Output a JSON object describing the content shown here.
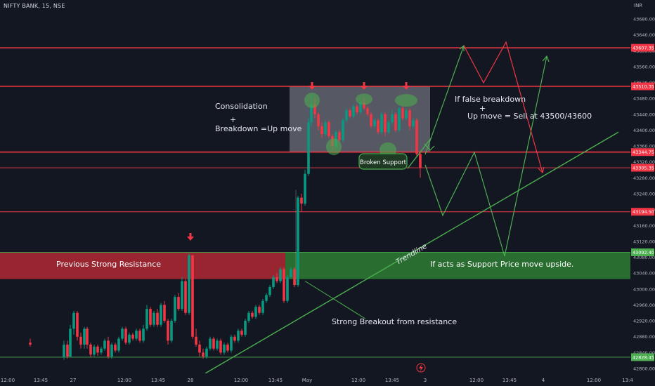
{
  "header": {
    "symbol": "NIFTY BANK, 15, NSE",
    "currency": "INR"
  },
  "chart_data": {
    "type": "candlestick",
    "ylim": [
      42790,
      43700
    ],
    "y_ticks": [
      43680,
      43640,
      43600,
      43560,
      43520,
      43480,
      43440,
      43400,
      43360,
      43320,
      43280,
      43240,
      43200,
      43160,
      43120,
      43080,
      43040,
      43000,
      42960,
      42920,
      42880,
      42840,
      42800
    ],
    "x_ticks": [
      {
        "label": "12:00",
        "x": 11
      },
      {
        "label": "13:45",
        "x": 58
      },
      {
        "label": "27",
        "x": 104
      },
      {
        "label": "12:00",
        "x": 177
      },
      {
        "label": "13:45",
        "x": 225
      },
      {
        "label": "28",
        "x": 271
      },
      {
        "label": "12:00",
        "x": 343
      },
      {
        "label": "13:45",
        "x": 392
      },
      {
        "label": "May",
        "x": 437
      },
      {
        "label": "12:00",
        "x": 510
      },
      {
        "label": "13:45",
        "x": 558
      },
      {
        "label": "3",
        "x": 605
      },
      {
        "label": "12:00",
        "x": 678
      },
      {
        "label": "13:45",
        "x": 725
      },
      {
        "label": "4",
        "x": 773
      },
      {
        "label": "12:00",
        "x": 845
      },
      {
        "label": "13:4",
        "x": 893
      }
    ],
    "levels": [
      {
        "value": 43607.35,
        "label": "43607.35",
        "color": "#f23645",
        "weight": "thick"
      },
      {
        "value": 43510.35,
        "label": "43510.35",
        "color": "#f23645",
        "weight": "thick"
      },
      {
        "value": 43344.75,
        "label": "43344.75",
        "color": "#f23645",
        "weight": "thick"
      },
      {
        "value": 43305.35,
        "label": "43305.35",
        "color": "#f23645",
        "weight": "thin"
      },
      {
        "value": 43194.5,
        "label": "43194.50",
        "color": "#f23645",
        "weight": "thin"
      },
      {
        "value": 43092.4,
        "label": "43092.40",
        "color": "#4caf50",
        "weight": "thin"
      },
      {
        "value": 42828.45,
        "label": "42828.45",
        "color": "#4caf50",
        "weight": "thin"
      }
    ],
    "zones": [
      {
        "name": "resistance-zone",
        "label": "Previous Strong Resistance",
        "x1": 0,
        "x2": 406,
        "y1": 43092,
        "y2": 43025,
        "color": "#b22833"
      },
      {
        "name": "support-zone",
        "label": "If acts as Support Price move upside.",
        "x1": 406,
        "x2": 897,
        "y1": 43092,
        "y2": 43025,
        "color": "#2e7d32"
      },
      {
        "name": "consolidation-box",
        "label": "",
        "x1": 412,
        "x2": 612,
        "y1": 43510,
        "y2": 43345,
        "color": "#b2b5be"
      }
    ],
    "candles": [
      [
        43,
        42865,
        42860,
        42875,
        42855
      ],
      [
        91,
        42828,
        42860,
        42870,
        42822
      ],
      [
        96,
        42860,
        42830,
        42870,
        42825
      ],
      [
        100,
        42830,
        42900,
        42910,
        42828
      ],
      [
        105,
        42900,
        42940,
        42945,
        42885
      ],
      [
        110,
        42940,
        42880,
        42945,
        42870
      ],
      [
        115,
        42880,
        42860,
        42890,
        42850
      ],
      [
        120,
        42860,
        42900,
        42905,
        42850
      ],
      [
        124,
        42900,
        42860,
        42905,
        42850
      ],
      [
        129,
        42860,
        42835,
        42865,
        42828
      ],
      [
        134,
        42835,
        42855,
        42860,
        42830
      ],
      [
        139,
        42855,
        42840,
        42860,
        42832
      ],
      [
        144,
        42840,
        42850,
        42855,
        42835
      ],
      [
        149,
        42850,
        42870,
        42875,
        42845
      ],
      [
        154,
        42870,
        42830,
        42880,
        42825
      ],
      [
        159,
        42830,
        42860,
        42865,
        42825
      ],
      [
        164,
        42860,
        42845,
        42865,
        42840
      ],
      [
        169,
        42845,
        42875,
        42880,
        42840
      ],
      [
        174,
        42875,
        42900,
        42905,
        42870
      ],
      [
        179,
        42900,
        42865,
        42905,
        42860
      ],
      [
        184,
        42865,
        42885,
        42890,
        42860
      ],
      [
        189,
        42885,
        42875,
        42890,
        42870
      ],
      [
        194,
        42875,
        42895,
        42900,
        42870
      ],
      [
        199,
        42895,
        42870,
        42900,
        42865
      ],
      [
        204,
        42870,
        42900,
        42910,
        42865
      ],
      [
        209,
        42900,
        42950,
        42960,
        42895
      ],
      [
        214,
        42950,
        42910,
        42955,
        42905
      ],
      [
        219,
        42910,
        42940,
        42945,
        42905
      ],
      [
        224,
        42940,
        42910,
        42950,
        42905
      ],
      [
        229,
        42910,
        42960,
        42965,
        42905
      ],
      [
        234,
        42960,
        42920,
        42970,
        42915
      ],
      [
        239,
        42920,
        42870,
        42925,
        42860
      ],
      [
        244,
        42870,
        42920,
        42925,
        42865
      ],
      [
        249,
        42920,
        42980,
        42985,
        42915
      ],
      [
        254,
        42980,
        42950,
        42990,
        42945
      ],
      [
        259,
        42950,
        43020,
        43030,
        42945
      ],
      [
        264,
        43020,
        42940,
        43025,
        42935
      ],
      [
        269,
        42940,
        43085,
        43090,
        42935
      ],
      [
        274,
        43085,
        42880,
        43085,
        42875
      ],
      [
        279,
        42880,
        42860,
        42900,
        42855
      ],
      [
        284,
        42860,
        42840,
        42870,
        42830
      ],
      [
        289,
        42840,
        42830,
        42850,
        42825
      ],
      [
        294,
        42830,
        42850,
        42855,
        42825
      ],
      [
        299,
        42850,
        42875,
        42880,
        42845
      ],
      [
        304,
        42875,
        42850,
        42880,
        42845
      ],
      [
        309,
        42850,
        42870,
        42875,
        42845
      ],
      [
        314,
        42870,
        42840,
        42875,
        42835
      ],
      [
        319,
        42840,
        42860,
        42865,
        42835
      ],
      [
        324,
        42860,
        42845,
        42865,
        42840
      ],
      [
        329,
        42845,
        42880,
        42885,
        42840
      ],
      [
        334,
        42880,
        42870,
        42885,
        42865
      ],
      [
        339,
        42870,
        42895,
        42900,
        42865
      ],
      [
        344,
        42895,
        42885,
        42900,
        42880
      ],
      [
        349,
        42885,
        42920,
        42925,
        42880
      ],
      [
        354,
        42920,
        42940,
        42945,
        42915
      ],
      [
        359,
        42940,
        42930,
        42945,
        42925
      ],
      [
        364,
        42930,
        42955,
        42960,
        42925
      ],
      [
        369,
        42955,
        42940,
        42960,
        42935
      ],
      [
        374,
        42940,
        42970,
        42975,
        42935
      ],
      [
        379,
        42970,
        42985,
        42990,
        42965
      ],
      [
        384,
        42985,
        43005,
        43010,
        42980
      ],
      [
        389,
        43005,
        43030,
        43035,
        43000
      ],
      [
        394,
        43030,
        43020,
        43040,
        43015
      ],
      [
        399,
        43020,
        43050,
        43055,
        43015
      ],
      [
        404,
        43050,
        42970,
        43055,
        42965
      ],
      [
        409,
        42970,
        43030,
        43035,
        42965
      ],
      [
        414,
        43030,
        43050,
        43055,
        43025
      ],
      [
        419,
        43050,
        43010,
        43055,
        43005
      ],
      [
        424,
        43010,
        43230,
        43235,
        43005
      ],
      [
        429,
        43230,
        43215,
        43240,
        43195
      ],
      [
        434,
        43215,
        43290,
        43300,
        43210
      ],
      [
        439,
        43290,
        43420,
        43430,
        43285
      ],
      [
        443,
        43420,
        43465,
        43490,
        43410
      ],
      [
        448,
        43465,
        43440,
        43480,
        43430
      ],
      [
        453,
        43440,
        43410,
        43445,
        43400
      ],
      [
        458,
        43410,
        43390,
        43420,
        43380
      ],
      [
        463,
        43390,
        43420,
        43425,
        43385
      ],
      [
        468,
        43420,
        43385,
        43425,
        43380
      ],
      [
        473,
        43385,
        43360,
        43390,
        43350
      ],
      [
        478,
        43360,
        43395,
        43400,
        43355
      ],
      [
        483,
        43395,
        43375,
        43400,
        43370
      ],
      [
        488,
        43375,
        43425,
        43430,
        43370
      ],
      [
        493,
        43425,
        43450,
        43455,
        43420
      ],
      [
        498,
        43450,
        43435,
        43455,
        43430
      ],
      [
        503,
        43435,
        43460,
        43465,
        43430
      ],
      [
        508,
        43460,
        43445,
        43465,
        43440
      ],
      [
        513,
        43445,
        43470,
        43475,
        43440
      ],
      [
        518,
        43470,
        43455,
        43480,
        43450
      ],
      [
        523,
        43455,
        43440,
        43460,
        43435
      ],
      [
        528,
        43440,
        43410,
        43445,
        43405
      ],
      [
        533,
        43410,
        43425,
        43430,
        43405
      ],
      [
        538,
        43425,
        43395,
        43430,
        43390
      ],
      [
        543,
        43395,
        43440,
        43445,
        43390
      ],
      [
        548,
        43440,
        43395,
        43445,
        43385
      ],
      [
        553,
        43395,
        43420,
        43425,
        43390
      ],
      [
        558,
        43420,
        43440,
        43450,
        43415
      ],
      [
        563,
        43440,
        43400,
        43445,
        43395
      ],
      [
        568,
        43400,
        43455,
        43460,
        43395
      ],
      [
        573,
        43455,
        43430,
        43460,
        43425
      ],
      [
        578,
        43430,
        43450,
        43455,
        43425
      ],
      [
        583,
        43450,
        43410,
        43455,
        43400
      ],
      [
        588,
        43410,
        43425,
        43430,
        43405
      ],
      [
        593,
        43425,
        43340,
        43430,
        43335
      ],
      [
        598,
        43340,
        43305,
        43345,
        43280
      ]
    ],
    "red_markers_x": [
      271,
      444,
      518,
      578
    ],
    "annotations": [
      {
        "name": "consolidation-text",
        "lines": [
          "Consolidation",
          "+",
          "Breakdown =Up move"
        ]
      },
      {
        "name": "false-breakdown-text",
        "lines": [
          "If false breakdown",
          "+",
          "Up move = Sell at 43500/43600"
        ]
      },
      {
        "name": "broken-support-label",
        "text": "Broken Support"
      },
      {
        "name": "trendline-label",
        "text": "Trendline"
      },
      {
        "name": "breakout-text",
        "text": "Strong Breakout from resistance"
      }
    ]
  }
}
